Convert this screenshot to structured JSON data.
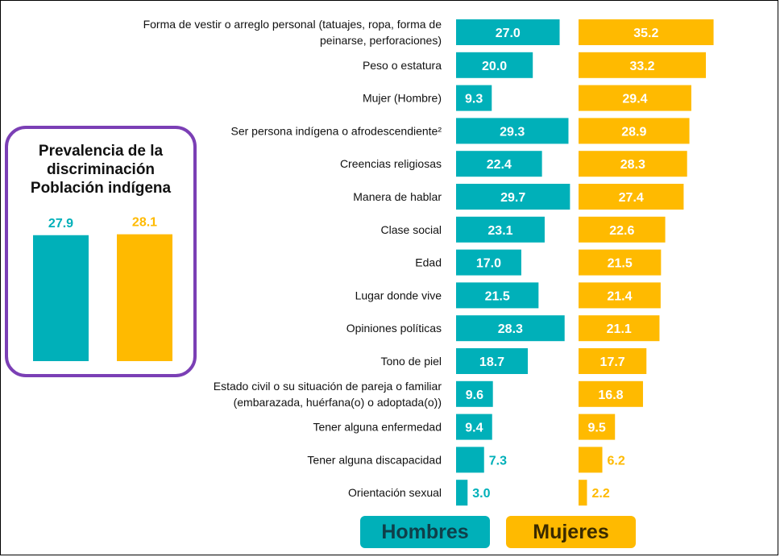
{
  "panel": {
    "title_lines": [
      "Prevalencia de la",
      "discriminación",
      "Población indígena"
    ]
  },
  "legend": {
    "hombres": "Hombres",
    "mujeres": "Mujeres"
  },
  "colors": {
    "hombres": "#00B0B9",
    "mujeres": "#FFBA00",
    "panel_border": "#7B3FB5",
    "label_inside": "#FFFFFF"
  },
  "chart_data": [
    {
      "type": "bar",
      "orientation": "horizontal",
      "categories": [
        "Forma de vestir o arreglo personal (tatuajes, ropa, forma de peinarse, perforaciones)",
        "Peso o estatura",
        "Mujer (Hombre)",
        "Ser persona indígena o afrodescendiente²",
        "Creencias religiosas",
        "Manera de hablar",
        "Clase social",
        "Edad",
        "Lugar donde vive",
        "Opiniones políticas",
        "Tono de piel",
        "Estado civil o su situación de pareja o familiar (embarazada, huérfana(o) o adoptada(o))",
        "Tener alguna enfermedad",
        "Tener alguna discapacidad",
        "Orientación sexual"
      ],
      "category_lines": [
        [
          "Forma de vestir o arreglo personal (tatuajes, ropa, forma de",
          "peinarse, perforaciones)"
        ],
        [
          "Peso o estatura"
        ],
        [
          "Mujer (Hombre)"
        ],
        [
          "Ser persona indígena o afrodescendiente²"
        ],
        [
          "Creencias religiosas"
        ],
        [
          "Manera de hablar"
        ],
        [
          "Clase social"
        ],
        [
          "Edad"
        ],
        [
          "Lugar donde vive"
        ],
        [
          "Opiniones políticas"
        ],
        [
          "Tono de piel"
        ],
        [
          "Estado civil o su situación de pareja o familiar",
          "(embarazada, huérfana(o) o adoptada(o))"
        ],
        [
          "Tener alguna enfermedad"
        ],
        [
          "Tener alguna discapacidad"
        ],
        [
          "Orientación sexual"
        ]
      ],
      "series": [
        {
          "name": "Hombres",
          "values": [
            27.0,
            20.0,
            9.3,
            29.3,
            22.4,
            29.7,
            23.1,
            17.0,
            21.5,
            28.3,
            18.7,
            9.6,
            9.4,
            7.3,
            3.0
          ]
        },
        {
          "name": "Mujeres",
          "values": [
            35.2,
            33.2,
            29.4,
            28.9,
            28.3,
            27.4,
            22.6,
            21.5,
            21.4,
            21.1,
            17.7,
            16.8,
            9.5,
            6.2,
            2.2
          ]
        }
      ],
      "value_labels": {
        "Hombres": [
          "27.0",
          "20.0",
          "9.3",
          "29.3",
          "22.4",
          "29.7",
          "23.1",
          "17.0",
          "21.5",
          "28.3",
          "18.7",
          "9.6",
          "9.4",
          "7.3",
          "3.0"
        ],
        "Mujeres": [
          "35.2",
          "33.2",
          "29.4",
          "28.9",
          "28.3",
          "27.4",
          "22.6",
          "21.5",
          "21.4",
          "21.1",
          "17.7",
          "16.8",
          "9.5",
          "6.2",
          "2.2"
        ]
      }
    },
    {
      "type": "bar",
      "categories": [
        "Hombres",
        "Mujeres"
      ],
      "values": [
        27.9,
        28.1
      ],
      "value_labels": [
        "27.9",
        "28.1"
      ]
    }
  ]
}
